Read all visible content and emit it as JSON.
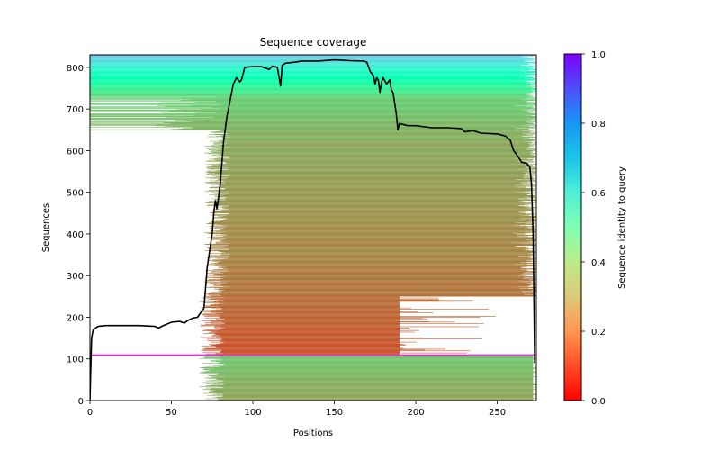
{
  "chart_data": {
    "type": "heatmap",
    "title": "Sequence coverage",
    "xlabel": "Positions",
    "ylabel": "Sequences",
    "xlim": [
      0,
      274
    ],
    "ylim": [
      0,
      830
    ],
    "xticks": [
      0,
      50,
      100,
      150,
      200,
      250
    ],
    "xtick_labels": [
      "0",
      "50",
      "100",
      "150",
      "200",
      "250"
    ],
    "yticks": [
      0,
      100,
      200,
      300,
      400,
      500,
      600,
      700,
      800
    ],
    "ytick_labels": [
      "0",
      "100",
      "200",
      "300",
      "400",
      "500",
      "600",
      "700",
      "800"
    ],
    "grid": false,
    "colorbar": {
      "label": "Sequence identity to query",
      "colormap": "rainbow_r",
      "range": [
        0.0,
        1.0
      ],
      "ticks": [
        0.0,
        0.2,
        0.4,
        0.6,
        0.8,
        1.0
      ],
      "tick_labels": [
        "0.0",
        "0.2",
        "0.4",
        "0.6",
        "0.8",
        "1.0"
      ],
      "placement": "right"
    },
    "sequence_blocks": [
      {
        "y_start": 0,
        "y_end": 108,
        "x_start": 72,
        "x_end": 272,
        "identity_start": 0.22,
        "identity_end": 0.28
      },
      {
        "y_start": 108,
        "y_end": 111,
        "x_start": 0,
        "x_end": 274,
        "identity_start": 1.0,
        "identity_end": 1.0
      },
      {
        "y_start": 111,
        "y_end": 250,
        "x_start": 72,
        "x_end": 190,
        "identity_start": 0.1,
        "identity_end": 0.14
      },
      {
        "y_start": 250,
        "y_end": 650,
        "x_start": 75,
        "x_end": 274,
        "identity_start": 0.15,
        "identity_end": 0.24
      },
      {
        "y_start": 650,
        "y_end": 730,
        "x_start": 0,
        "x_end": 274,
        "identity_start": 0.25,
        "identity_end": 0.3
      },
      {
        "y_start": 730,
        "y_end": 830,
        "x_start": 0,
        "x_end": 274,
        "identity_start": 0.32,
        "identity_end": 0.72
      }
    ],
    "coverage_line": {
      "name": "coverage",
      "color": "#000000",
      "x": [
        0,
        1,
        2,
        5,
        10,
        20,
        30,
        40,
        42,
        45,
        50,
        55,
        58,
        60,
        63,
        66,
        70,
        72,
        75,
        76,
        77,
        78,
        80,
        82,
        84,
        86,
        88,
        90,
        92,
        93,
        95,
        100,
        105,
        110,
        112,
        115,
        117,
        118,
        120,
        125,
        130,
        140,
        150,
        160,
        168,
        170,
        172,
        174,
        175,
        176,
        177,
        178,
        179,
        180,
        182,
        184,
        185,
        186,
        188,
        189,
        190,
        195,
        200,
        210,
        220,
        228,
        230,
        235,
        240,
        250,
        255,
        258,
        260,
        262,
        265,
        268,
        270,
        271,
        272,
        273
      ],
      "y": [
        0,
        150,
        170,
        178,
        180,
        180,
        180,
        178,
        174,
        180,
        188,
        190,
        186,
        192,
        198,
        200,
        222,
        320,
        400,
        450,
        480,
        460,
        520,
        620,
        680,
        720,
        760,
        775,
        765,
        770,
        800,
        802,
        802,
        795,
        803,
        800,
        755,
        805,
        810,
        812,
        815,
        815,
        818,
        816,
        815,
        812,
        790,
        780,
        760,
        775,
        770,
        740,
        765,
        775,
        760,
        770,
        745,
        740,
        690,
        650,
        665,
        660,
        660,
        655,
        655,
        653,
        645,
        648,
        642,
        640,
        635,
        625,
        600,
        590,
        572,
        570,
        560,
        520,
        400,
        90
      ]
    }
  }
}
